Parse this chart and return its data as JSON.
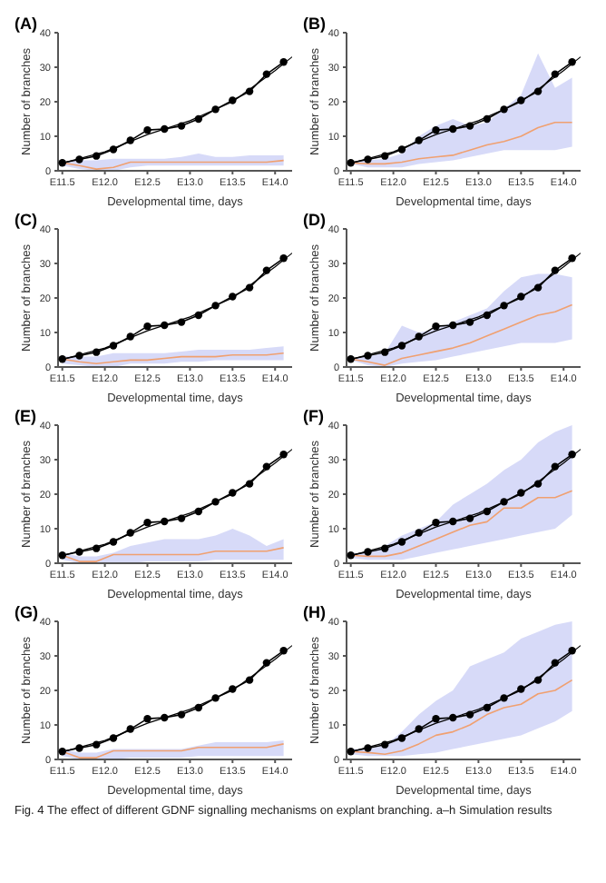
{
  "chart_data": [
    {
      "type": "line",
      "title": "(A)",
      "xlabel": "Developmental time, days",
      "ylabel": "Number of branches",
      "categories": [
        "E11.5",
        null,
        null,
        null,
        null,
        "E12.0",
        null,
        null,
        null,
        null,
        "E12.5",
        null,
        null,
        null,
        null,
        "E13.0",
        null,
        null,
        null,
        null,
        "E13.5",
        null,
        null,
        null,
        null,
        "E14.0",
        null,
        null
      ],
      "ylim": [
        0,
        40
      ],
      "yticks": [
        0,
        10,
        20,
        30,
        40
      ],
      "marker": "circle",
      "series": [
        {
          "color": "#f0a070",
          "marker": "none",
          "values": [
            2.3,
            null,
            1.5,
            null,
            0.5,
            null,
            1,
            null,
            2.5,
            null,
            2.5,
            null,
            2.5,
            null,
            2.5,
            null,
            2.5,
            null,
            2.5,
            null,
            2.5,
            null,
            2.5,
            null,
            2.5,
            null,
            3,
            null
          ],
          "lower": [
            1.5,
            null,
            0.5,
            null,
            0,
            null,
            0,
            null,
            1,
            null,
            1.5,
            null,
            1.5,
            null,
            1.5,
            null,
            1.5,
            null,
            1.5,
            null,
            1.5,
            null,
            1.5,
            null,
            1.5,
            null,
            1.5,
            null
          ],
          "upper": [
            2.5,
            null,
            3,
            null,
            3,
            null,
            3.5,
            null,
            3.5,
            null,
            3.5,
            null,
            3.5,
            null,
            4,
            null,
            5,
            null,
            4,
            null,
            4,
            null,
            4.5,
            null,
            4.5,
            null,
            4.5,
            null
          ]
        },
        {
          "color": "#000000",
          "values": [
            2.3,
            null,
            3.3,
            null,
            4.3,
            null,
            6.2,
            null,
            8.8,
            null,
            11.8,
            null,
            12.1,
            null,
            13,
            null,
            15,
            null,
            17.8,
            null,
            20.4,
            null,
            23,
            null,
            28,
            null,
            31.5,
            null
          ]
        },
        {
          "color": "#000000",
          "marker": "none",
          "values": [
            2.2,
            null,
            null,
            null,
            null,
            5.5,
            null,
            null,
            null,
            null,
            10.5,
            null,
            null,
            null,
            null,
            14.5,
            null,
            null,
            null,
            null,
            20,
            null,
            null,
            null,
            null,
            29,
            null,
            33
          ]
        }
      ]
    },
    {
      "type": "line",
      "title": "(B)",
      "xlabel": "Developmental time, days",
      "ylabel": "Number of branches",
      "categories": [
        "E11.5",
        null,
        null,
        null,
        null,
        "E12.0",
        null,
        null,
        null,
        null,
        "E12.5",
        null,
        null,
        null,
        null,
        "E13.0",
        null,
        null,
        null,
        null,
        "E13.5",
        null,
        null,
        null,
        null,
        "E14.0",
        null,
        null
      ],
      "ylim": [
        0,
        40
      ],
      "yticks": [
        0,
        10,
        20,
        30,
        40
      ],
      "marker": "circle",
      "series": [
        {
          "color": "#f0a070",
          "marker": "none",
          "values": [
            2.3,
            null,
            2,
            null,
            2,
            null,
            2.5,
            null,
            3.5,
            null,
            4,
            null,
            4.5,
            null,
            6,
            null,
            7.5,
            null,
            8.5,
            null,
            10,
            null,
            12.5,
            null,
            14,
            null,
            14,
            null
          ],
          "lower": [
            2,
            null,
            1,
            null,
            1,
            null,
            1,
            null,
            2,
            null,
            2.5,
            null,
            3,
            null,
            4,
            null,
            5,
            null,
            6,
            null,
            6,
            null,
            6,
            null,
            6,
            null,
            7,
            null
          ],
          "upper": [
            2.5,
            null,
            3,
            null,
            3.5,
            null,
            5,
            null,
            10,
            null,
            13,
            null,
            15,
            null,
            13,
            null,
            14,
            null,
            18,
            null,
            22,
            null,
            34,
            null,
            24,
            null,
            27,
            null
          ]
        },
        {
          "color": "#000000",
          "values": [
            2.3,
            null,
            3.3,
            null,
            4.3,
            null,
            6.2,
            null,
            8.8,
            null,
            11.8,
            null,
            12.1,
            null,
            13,
            null,
            15,
            null,
            17.8,
            null,
            20.4,
            null,
            23,
            null,
            28,
            null,
            31.5,
            null
          ]
        },
        {
          "color": "#000000",
          "marker": "none",
          "values": [
            2.2,
            null,
            null,
            null,
            null,
            5.5,
            null,
            null,
            null,
            null,
            10.5,
            null,
            null,
            null,
            null,
            14.5,
            null,
            null,
            null,
            null,
            20,
            null,
            null,
            null,
            null,
            29,
            null,
            33
          ]
        }
      ]
    },
    {
      "type": "line",
      "title": "(C)",
      "xlabel": "Developmental time, days",
      "ylabel": "Number of branches",
      "categories": [
        "E11.5",
        null,
        null,
        null,
        null,
        "E12.0",
        null,
        null,
        null,
        null,
        "E12.5",
        null,
        null,
        null,
        null,
        "E13.0",
        null,
        null,
        null,
        null,
        "E13.5",
        null,
        null,
        null,
        null,
        "E14.0",
        null,
        null
      ],
      "ylim": [
        0,
        40
      ],
      "yticks": [
        0,
        10,
        20,
        30,
        40
      ],
      "marker": "circle",
      "series": [
        {
          "color": "#f0a070",
          "marker": "none",
          "values": [
            2.3,
            null,
            1.5,
            null,
            1,
            null,
            1.5,
            null,
            2,
            null,
            2,
            null,
            2.5,
            null,
            3,
            null,
            3,
            null,
            3,
            null,
            3.5,
            null,
            3.5,
            null,
            3.5,
            null,
            4,
            null
          ],
          "lower": [
            1,
            null,
            0.5,
            null,
            0,
            null,
            0,
            null,
            1,
            null,
            1,
            null,
            1,
            null,
            1.5,
            null,
            1.5,
            null,
            2,
            null,
            2,
            null,
            2,
            null,
            2,
            null,
            2,
            null
          ],
          "upper": [
            3,
            null,
            3,
            null,
            3,
            null,
            4,
            null,
            4,
            null,
            4,
            null,
            4,
            null,
            4.5,
            null,
            5,
            null,
            5,
            null,
            5,
            null,
            5,
            null,
            5.5,
            null,
            6,
            null
          ]
        },
        {
          "color": "#000000",
          "values": [
            2.3,
            null,
            3.3,
            null,
            4.3,
            null,
            6.2,
            null,
            8.8,
            null,
            11.8,
            null,
            12.1,
            null,
            13,
            null,
            15,
            null,
            17.8,
            null,
            20.4,
            null,
            23,
            null,
            28,
            null,
            31.5,
            null
          ]
        },
        {
          "color": "#000000",
          "marker": "none",
          "values": [
            2.2,
            null,
            null,
            null,
            null,
            5.5,
            null,
            null,
            null,
            null,
            10.5,
            null,
            null,
            null,
            null,
            14.5,
            null,
            null,
            null,
            null,
            20,
            null,
            null,
            null,
            null,
            29,
            null,
            33
          ]
        }
      ]
    },
    {
      "type": "line",
      "title": "(D)",
      "xlabel": "Developmental time, days",
      "ylabel": "Number of branches",
      "categories": [
        "E11.5",
        null,
        null,
        null,
        null,
        "E12.0",
        null,
        null,
        null,
        null,
        "E12.5",
        null,
        null,
        null,
        null,
        "E13.0",
        null,
        null,
        null,
        null,
        "E13.5",
        null,
        null,
        null,
        null,
        "E14.0",
        null,
        null
      ],
      "ylim": [
        0,
        40
      ],
      "yticks": [
        0,
        10,
        20,
        30,
        40
      ],
      "marker": "circle",
      "series": [
        {
          "color": "#f0a070",
          "marker": "none",
          "values": [
            2.3,
            null,
            1.5,
            null,
            0.5,
            null,
            2.5,
            null,
            3.5,
            null,
            4.5,
            null,
            5.5,
            null,
            7,
            null,
            9,
            null,
            11,
            null,
            13,
            null,
            15,
            null,
            16,
            null,
            18,
            null
          ],
          "lower": [
            2,
            null,
            0.5,
            null,
            0,
            null,
            1,
            null,
            1.5,
            null,
            2,
            null,
            3,
            null,
            4,
            null,
            5,
            null,
            6,
            null,
            7,
            null,
            7,
            null,
            7,
            null,
            8,
            null
          ],
          "upper": [
            2.5,
            null,
            3,
            null,
            4,
            null,
            12,
            null,
            10,
            null,
            11,
            null,
            13,
            null,
            15,
            null,
            17,
            null,
            22,
            null,
            26,
            null,
            27,
            null,
            27,
            null,
            26,
            null
          ]
        },
        {
          "color": "#000000",
          "values": [
            2.3,
            null,
            3.3,
            null,
            4.3,
            null,
            6.2,
            null,
            8.8,
            null,
            11.8,
            null,
            12.1,
            null,
            13,
            null,
            15,
            null,
            17.8,
            null,
            20.4,
            null,
            23,
            null,
            28,
            null,
            31.5,
            null
          ]
        },
        {
          "color": "#000000",
          "marker": "none",
          "values": [
            2.2,
            null,
            null,
            null,
            null,
            5.5,
            null,
            null,
            null,
            null,
            10.5,
            null,
            null,
            null,
            null,
            14.5,
            null,
            null,
            null,
            null,
            20,
            null,
            null,
            null,
            null,
            29,
            null,
            33
          ]
        }
      ]
    },
    {
      "type": "line",
      "title": "(E)",
      "xlabel": "Developmental time, days",
      "ylabel": "Number of branches",
      "categories": [
        "E11.5",
        null,
        null,
        null,
        null,
        "E12.0",
        null,
        null,
        null,
        null,
        "E12.5",
        null,
        null,
        null,
        null,
        "E13.0",
        null,
        null,
        null,
        null,
        "E13.5",
        null,
        null,
        null,
        null,
        "E14.0",
        null,
        null
      ],
      "ylim": [
        0,
        40
      ],
      "yticks": [
        0,
        10,
        20,
        30,
        40
      ],
      "marker": "circle",
      "series": [
        {
          "color": "#f0a070",
          "marker": "none",
          "values": [
            2.3,
            null,
            0.5,
            null,
            0.5,
            null,
            2.5,
            null,
            2.5,
            null,
            2.5,
            null,
            2.5,
            null,
            2.5,
            null,
            2.5,
            null,
            3.5,
            null,
            3.5,
            null,
            3.5,
            null,
            3.5,
            null,
            4.5,
            null
          ],
          "lower": [
            1,
            null,
            0,
            null,
            0,
            null,
            0,
            null,
            0,
            null,
            0.5,
            null,
            0.5,
            null,
            0.5,
            null,
            0.5,
            null,
            1,
            null,
            1,
            null,
            1,
            null,
            1,
            null,
            1,
            null
          ],
          "upper": [
            3,
            null,
            2,
            null,
            2,
            null,
            3,
            null,
            5,
            null,
            6,
            null,
            7,
            null,
            7,
            null,
            7,
            null,
            8,
            null,
            10,
            null,
            8,
            null,
            5,
            null,
            7,
            null
          ]
        },
        {
          "color": "#000000",
          "values": [
            2.3,
            null,
            3.3,
            null,
            4.3,
            null,
            6.2,
            null,
            8.8,
            null,
            11.8,
            null,
            12.1,
            null,
            13,
            null,
            15,
            null,
            17.8,
            null,
            20.4,
            null,
            23,
            null,
            28,
            null,
            31.5,
            null
          ]
        },
        {
          "color": "#000000",
          "marker": "none",
          "values": [
            2.2,
            null,
            null,
            null,
            null,
            5.5,
            null,
            null,
            null,
            null,
            10.5,
            null,
            null,
            null,
            null,
            14.5,
            null,
            null,
            null,
            null,
            20,
            null,
            null,
            null,
            null,
            29,
            null,
            33
          ]
        }
      ]
    },
    {
      "type": "line",
      "title": "(F)",
      "xlabel": "Developmental time, days",
      "ylabel": "Number of branches",
      "categories": [
        "E11.5",
        null,
        null,
        null,
        null,
        "E12.0",
        null,
        null,
        null,
        null,
        "E12.5",
        null,
        null,
        null,
        null,
        "E13.0",
        null,
        null,
        null,
        null,
        "E13.5",
        null,
        null,
        null,
        null,
        "E14.0",
        null,
        null
      ],
      "ylim": [
        0,
        40
      ],
      "yticks": [
        0,
        10,
        20,
        30,
        40
      ],
      "marker": "circle",
      "series": [
        {
          "color": "#f0a070",
          "marker": "none",
          "values": [
            2.3,
            null,
            2,
            null,
            2,
            null,
            3,
            null,
            5,
            null,
            7,
            null,
            9,
            null,
            11,
            null,
            12,
            null,
            16,
            null,
            16,
            null,
            19,
            null,
            19,
            null,
            21,
            null
          ],
          "lower": [
            1.5,
            null,
            1,
            null,
            1,
            null,
            1,
            null,
            2,
            null,
            3,
            null,
            4,
            null,
            5,
            null,
            6,
            null,
            7,
            null,
            8,
            null,
            9,
            null,
            10,
            null,
            14,
            null
          ],
          "upper": [
            3,
            null,
            3,
            null,
            5,
            null,
            8,
            null,
            10,
            null,
            12,
            null,
            17,
            null,
            20,
            null,
            23,
            null,
            27,
            null,
            30,
            null,
            35,
            null,
            38,
            null,
            40,
            null
          ]
        },
        {
          "color": "#000000",
          "values": [
            2.3,
            null,
            3.3,
            null,
            4.3,
            null,
            6.2,
            null,
            8.8,
            null,
            11.8,
            null,
            12.1,
            null,
            13,
            null,
            15,
            null,
            17.8,
            null,
            20.4,
            null,
            23,
            null,
            28,
            null,
            31.5,
            null
          ]
        },
        {
          "color": "#000000",
          "marker": "none",
          "values": [
            2.2,
            null,
            null,
            null,
            null,
            5.5,
            null,
            null,
            null,
            null,
            10.5,
            null,
            null,
            null,
            null,
            14.5,
            null,
            null,
            null,
            null,
            20,
            null,
            null,
            null,
            null,
            29,
            null,
            33
          ]
        }
      ]
    },
    {
      "type": "line",
      "title": "(G)",
      "xlabel": "Developmental time, days",
      "ylabel": "Number of branches",
      "categories": [
        "E11.5",
        null,
        null,
        null,
        null,
        "E12.0",
        null,
        null,
        null,
        null,
        "E12.5",
        null,
        null,
        null,
        null,
        "E13.0",
        null,
        null,
        null,
        null,
        "E13.5",
        null,
        null,
        null,
        null,
        "E14.0",
        null,
        null
      ],
      "ylim": [
        0,
        40
      ],
      "yticks": [
        0,
        10,
        20,
        30,
        40
      ],
      "marker": "circle",
      "series": [
        {
          "color": "#f0a070",
          "marker": "none",
          "values": [
            2.3,
            null,
            0.5,
            null,
            0.5,
            null,
            2.5,
            null,
            2.5,
            null,
            2.5,
            null,
            2.5,
            null,
            2.5,
            null,
            3.5,
            null,
            3.5,
            null,
            3.5,
            null,
            3.5,
            null,
            3.5,
            null,
            4.5,
            null
          ],
          "lower": [
            1,
            null,
            0,
            null,
            0,
            null,
            0,
            null,
            0.5,
            null,
            0.5,
            null,
            0.5,
            null,
            0.5,
            null,
            1,
            null,
            1,
            null,
            1,
            null,
            1,
            null,
            1,
            null,
            1,
            null
          ],
          "upper": [
            3,
            null,
            2,
            null,
            2,
            null,
            3,
            null,
            3,
            null,
            3,
            null,
            3,
            null,
            3,
            null,
            4,
            null,
            5,
            null,
            5,
            null,
            5,
            null,
            5,
            null,
            5.5,
            null
          ]
        },
        {
          "color": "#000000",
          "values": [
            2.3,
            null,
            3.3,
            null,
            4.3,
            null,
            6.2,
            null,
            8.8,
            null,
            11.8,
            null,
            12.1,
            null,
            13,
            null,
            15,
            null,
            17.8,
            null,
            20.4,
            null,
            23,
            null,
            28,
            null,
            31.5,
            null
          ]
        },
        {
          "color": "#000000",
          "marker": "none",
          "values": [
            2.2,
            null,
            null,
            null,
            null,
            5.5,
            null,
            null,
            null,
            null,
            10.5,
            null,
            null,
            null,
            null,
            14.5,
            null,
            null,
            null,
            null,
            20,
            null,
            null,
            null,
            null,
            29,
            null,
            33
          ]
        }
      ]
    },
    {
      "type": "line",
      "title": "(H)",
      "xlabel": "Developmental time, days",
      "ylabel": "Number of branches",
      "categories": [
        "E11.5",
        null,
        null,
        null,
        null,
        "E12.0",
        null,
        null,
        null,
        null,
        "E12.5",
        null,
        null,
        null,
        null,
        "E13.0",
        null,
        null,
        null,
        null,
        "E13.5",
        null,
        null,
        null,
        null,
        "E14.0",
        null,
        null
      ],
      "ylim": [
        0,
        40
      ],
      "yticks": [
        0,
        10,
        20,
        30,
        40
      ],
      "marker": "circle",
      "annotations": [
        "Fig. 4 The effect of different GDNF signalling mechanisms on explant branching. a–h Simulation results"
      ],
      "series": [
        {
          "color": "#f0a070",
          "marker": "none",
          "values": [
            2.3,
            null,
            2,
            null,
            1.5,
            null,
            2.5,
            null,
            4.5,
            null,
            7,
            null,
            8,
            null,
            10,
            null,
            13,
            null,
            15,
            null,
            16,
            null,
            19,
            null,
            20,
            null,
            23,
            null
          ],
          "lower": [
            1.5,
            null,
            1,
            null,
            1,
            null,
            1,
            null,
            1.5,
            null,
            2,
            null,
            3,
            null,
            4,
            null,
            5,
            null,
            6,
            null,
            7,
            null,
            9,
            null,
            11,
            null,
            14,
            null
          ],
          "upper": [
            3,
            null,
            3,
            null,
            4,
            null,
            8,
            null,
            13,
            null,
            17,
            null,
            20,
            null,
            27,
            null,
            29,
            null,
            31,
            null,
            35,
            null,
            37,
            null,
            39,
            null,
            40,
            null
          ]
        },
        {
          "color": "#000000",
          "values": [
            2.3,
            null,
            3.3,
            null,
            4.3,
            null,
            6.2,
            null,
            8.8,
            null,
            11.8,
            null,
            12.1,
            null,
            13,
            null,
            15,
            null,
            17.8,
            null,
            20.4,
            null,
            23,
            null,
            28,
            null,
            31.5,
            null
          ]
        },
        {
          "color": "#000000",
          "marker": "none",
          "values": [
            2.2,
            null,
            null,
            null,
            null,
            5.5,
            null,
            null,
            null,
            null,
            10.5,
            null,
            null,
            null,
            null,
            14.5,
            null,
            null,
            null,
            null,
            20,
            null,
            null,
            null,
            null,
            29,
            null,
            33
          ]
        }
      ]
    }
  ]
}
